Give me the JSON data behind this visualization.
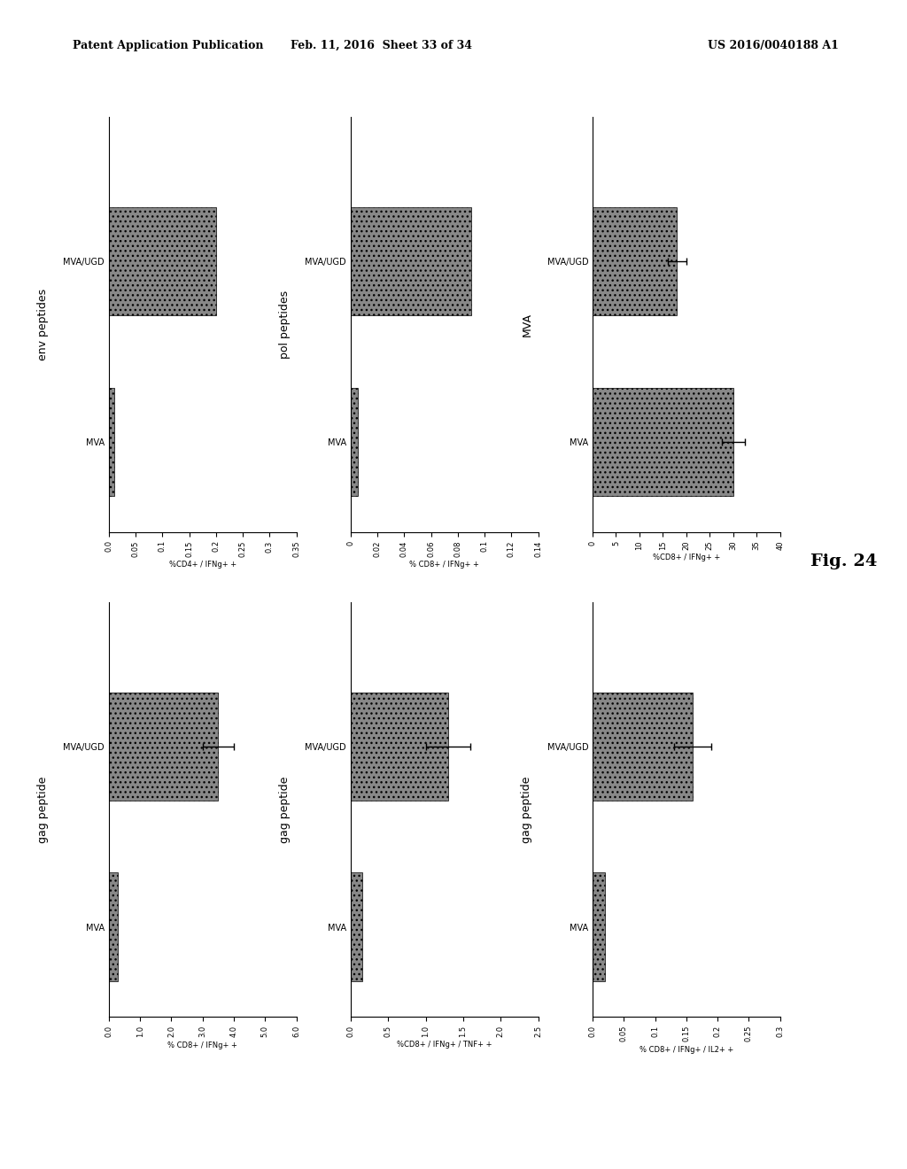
{
  "header_left": "Patent Application Publication",
  "header_mid": "Feb. 11, 2016  Sheet 33 of 34",
  "header_right": "US 2016/0040188 A1",
  "fig_label": "Fig. 24",
  "bar_color": "#888888",
  "bar_hatch": "...",
  "plots": [
    {
      "row": 0,
      "col": 0,
      "title": "env peptides",
      "xlabel": "%CD4+ / IFNg+ +",
      "xlim": [
        0.0,
        0.35
      ],
      "xticks": [
        0.35,
        0.3,
        0.25,
        0.2,
        0.15,
        0.1,
        0.05,
        0.0
      ],
      "bars": [
        {
          "label": "MVA/UGD",
          "value": 0.2,
          "error": null
        },
        {
          "label": "MVA",
          "value": 0.01,
          "error": null
        }
      ]
    },
    {
      "row": 0,
      "col": 1,
      "title": "pol peptides",
      "xlabel": "% CD8+ / IFNg+ +",
      "xlim": [
        0.0,
        0.14
      ],
      "xticks": [
        0.14,
        0.12,
        0.1,
        0.08,
        0.06,
        0.04,
        0.02,
        0
      ],
      "bars": [
        {
          "label": "MVA/UGD",
          "value": 0.09,
          "error": null
        },
        {
          "label": "MVA",
          "value": 0.005,
          "error": null
        }
      ]
    },
    {
      "row": 0,
      "col": 2,
      "title": "MVA",
      "xlabel": "%CD8+ / IFNg+ +",
      "xlim": [
        0,
        40
      ],
      "xticks": [
        40,
        35,
        30,
        25,
        20,
        15,
        10,
        5,
        0
      ],
      "bars": [
        {
          "label": "MVA/UGD",
          "value": 18,
          "error": 2.0
        },
        {
          "label": "MVA",
          "value": 30,
          "error": 2.5
        }
      ]
    },
    {
      "row": 1,
      "col": 0,
      "title": "gag peptide",
      "xlabel": "% CD8+ / IFNg+ +",
      "xlim": [
        0.0,
        6.0
      ],
      "xticks": [
        6.0,
        5.0,
        4.0,
        3.0,
        2.0,
        1.0,
        0.0
      ],
      "bars": [
        {
          "label": "MVA/UGD",
          "value": 3.5,
          "error": 0.5
        },
        {
          "label": "MVA",
          "value": 0.3,
          "error": null
        }
      ]
    },
    {
      "row": 1,
      "col": 1,
      "title": "gag peptide",
      "xlabel": "%CD8+ / IFNg+ / TNF+ +",
      "xlim": [
        0.0,
        2.5
      ],
      "xticks": [
        2.5,
        2.0,
        1.5,
        1.0,
        0.5,
        0.0
      ],
      "bars": [
        {
          "label": "MVA/UGD",
          "value": 1.3,
          "error": 0.3
        },
        {
          "label": "MVA",
          "value": 0.15,
          "error": null
        }
      ]
    },
    {
      "row": 1,
      "col": 2,
      "title": "gag peptide",
      "xlabel": "% CD8+ / IFNg+ / IL2+ +",
      "xlim": [
        0.0,
        0.3
      ],
      "xticks": [
        0.3,
        0.25,
        0.2,
        0.15,
        0.1,
        0.05,
        0.0
      ],
      "bars": [
        {
          "label": "MVA/UGD",
          "value": 0.16,
          "error": 0.03
        },
        {
          "label": "MVA",
          "value": 0.02,
          "error": null
        }
      ]
    }
  ]
}
